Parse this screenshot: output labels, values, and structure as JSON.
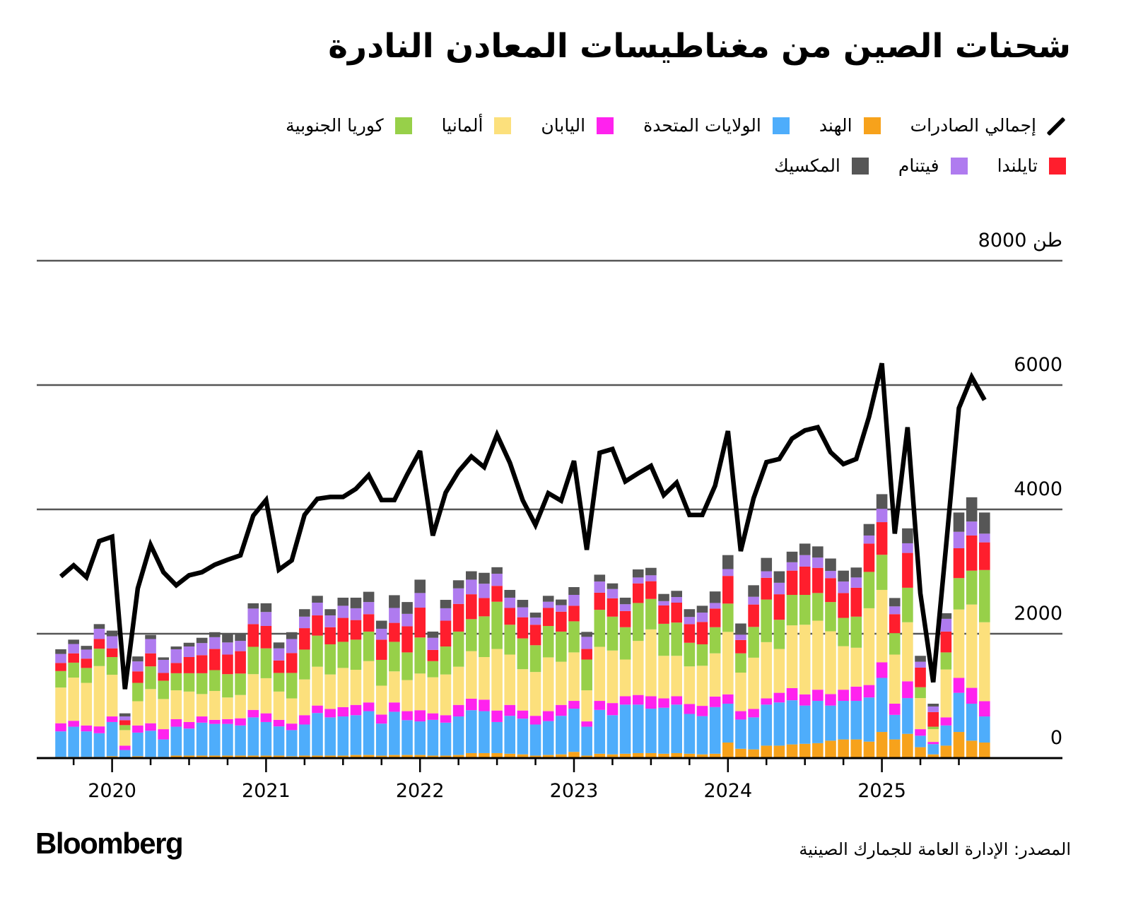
{
  "title": "شحنات الصين من مغناطيسات المعادن النادرة",
  "legend": {
    "total": "إجمالي الصادرات",
    "india": "الهند",
    "us": "الولايات المتحدة",
    "japan": "اليابان",
    "germany": "ألمانيا",
    "korea": "كوريا الجنوبية",
    "thailand": "تايلندا",
    "vietnam": "فيتنام",
    "mexico": "المكسيك"
  },
  "colors": {
    "india": "#F7A21B",
    "us": "#4EADFB",
    "japan": "#FF22EE",
    "germany": "#FCE07C",
    "korea": "#97D049",
    "thailand": "#FF1E2D",
    "vietnam": "#AF7BEF",
    "mexico": "#565656",
    "total": "#000000"
  },
  "brand": "Bloomberg",
  "source": "المصدر: الإدارة العامة للجمارك الصينية",
  "chart_data": {
    "type": "stacked bar + line",
    "ylim": [
      0,
      8000
    ],
    "y_unit": "طن",
    "y_ticks": [
      0,
      2000,
      4000,
      6000,
      8000
    ],
    "y_tick_labels": [
      "0",
      "2000",
      "4000",
      "6000",
      "8000 طن"
    ],
    "x_tick_labels": [
      "2020",
      "2021",
      "2022",
      "2023",
      "2024",
      "2025"
    ],
    "grid": "horizontal",
    "legend_placement": "top",
    "categories": [
      "2019-09",
      "2019-10",
      "2019-11",
      "2019-12",
      "2020-01",
      "2020-02",
      "2020-03",
      "2020-04",
      "2020-05",
      "2020-06",
      "2020-07",
      "2020-08",
      "2020-09",
      "2020-10",
      "2020-11",
      "2020-12",
      "2021-01",
      "2021-02",
      "2021-03",
      "2021-04",
      "2021-05",
      "2021-06",
      "2021-07",
      "2021-08",
      "2021-09",
      "2021-10",
      "2021-11",
      "2021-12",
      "2022-01",
      "2022-02",
      "2022-03",
      "2022-04",
      "2022-05",
      "2022-06",
      "2022-07",
      "2022-08",
      "2022-09",
      "2022-10",
      "2022-11",
      "2022-12",
      "2023-01",
      "2023-02",
      "2023-03",
      "2023-04",
      "2023-05",
      "2023-06",
      "2023-07",
      "2023-08",
      "2023-09",
      "2023-10",
      "2023-11",
      "2023-12",
      "2024-01",
      "2024-02",
      "2024-03",
      "2024-04",
      "2024-05",
      "2024-06",
      "2024-07",
      "2024-08",
      "2024-09",
      "2024-10",
      "2024-11",
      "2024-12",
      "2025-01",
      "2025-02",
      "2025-03",
      "2025-04",
      "2025-05",
      "2025-06",
      "2025-07",
      "2025-08",
      "2025-09"
    ],
    "line": {
      "name": "إجمالي الصادرات",
      "values": [
        2920,
        3100,
        2910,
        3490,
        3560,
        1110,
        2730,
        3430,
        2990,
        2780,
        2940,
        2990,
        3110,
        3190,
        3260,
        3900,
        4150,
        3030,
        3180,
        3910,
        4170,
        4200,
        4200,
        4330,
        4550,
        4150,
        4150,
        4560,
        4940,
        3580,
        4270,
        4610,
        4850,
        4680,
        5200,
        4750,
        4150,
        3750,
        4260,
        4140,
        4780,
        3350,
        4910,
        4970,
        4450,
        4580,
        4700,
        4230,
        4430,
        3910,
        3910,
        4380,
        5260,
        3330,
        4180,
        4760,
        4810,
        5140,
        5270,
        5320,
        4920,
        4730,
        4810,
        5490,
        6350,
        3610,
        5320,
        2650,
        1220,
        3400,
        5630,
        6130,
        5760
      ]
    },
    "series": [
      {
        "key": "india",
        "name": "الهند",
        "values": [
          20,
          20,
          20,
          20,
          30,
          10,
          30,
          20,
          20,
          40,
          40,
          40,
          40,
          40,
          40,
          40,
          40,
          40,
          30,
          40,
          40,
          40,
          40,
          50,
          50,
          40,
          50,
          50,
          50,
          40,
          40,
          50,
          80,
          80,
          80,
          70,
          60,
          40,
          50,
          60,
          100,
          40,
          70,
          60,
          70,
          80,
          80,
          70,
          80,
          70,
          60,
          70,
          250,
          150,
          140,
          200,
          200,
          220,
          230,
          240,
          280,
          300,
          300,
          265,
          420,
          300,
          390,
          175,
          60,
          200,
          420,
          280,
          250
        ]
      },
      {
        "key": "us",
        "name": "الولايات المتحدة",
        "values": [
          410,
          485,
          410,
          380,
          550,
          120,
          380,
          420,
          280,
          465,
          435,
          530,
          510,
          510,
          485,
          615,
          540,
          470,
          420,
          500,
          685,
          615,
          630,
          640,
          705,
          515,
          695,
          560,
          540,
          575,
          530,
          620,
          690,
          675,
          500,
          610,
          575,
          500,
          545,
          620,
          695,
          465,
          705,
          630,
          790,
          780,
          715,
          740,
          780,
          640,
          615,
          750,
          625,
          470,
          515,
          660,
          695,
          710,
          615,
          680,
          565,
          620,
          620,
          710,
          870,
          395,
          575,
          185,
          165,
          325,
          630,
          595,
          420
        ]
      },
      {
        "key": "japan",
        "name": "اليابان",
        "values": [
          130,
          95,
          95,
          110,
          90,
          70,
          115,
          120,
          165,
          120,
          105,
          100,
          65,
          75,
          115,
          120,
          140,
          105,
          105,
          150,
          120,
          135,
          150,
          165,
          140,
          145,
          150,
          145,
          180,
          105,
          120,
          185,
          185,
          185,
          185,
          175,
          130,
          140,
          160,
          175,
          125,
          85,
          145,
          195,
          135,
          155,
          200,
          150,
          135,
          160,
          165,
          170,
          150,
          135,
          135,
          100,
          155,
          195,
          180,
          180,
          185,
          180,
          230,
          200,
          250,
          180,
          270,
          105,
          35,
          130,
          240,
          255,
          245
        ]
      },
      {
        "key": "germany",
        "name": "ألمانيا",
        "values": [
          575,
          695,
          685,
          970,
          670,
          250,
          390,
          550,
          485,
          465,
          490,
          360,
          465,
          350,
          375,
          575,
          565,
          455,
          405,
          575,
          625,
          555,
          630,
          565,
          665,
          465,
          500,
          500,
          590,
          580,
          655,
          615,
          765,
          685,
          990,
          810,
          665,
          705,
          865,
          695,
          780,
          500,
          870,
          845,
          590,
          870,
          1075,
          685,
          650,
          605,
          645,
          695,
          1005,
          620,
          825,
          905,
          705,
          1010,
          1120,
          1110,
          1010,
          700,
          625,
          1235,
          1165,
          790,
          950,
          500,
          205,
          770,
          1100,
          1340,
          1270
        ]
      },
      {
        "key": "korea",
        "name": "كوريا الجنوبية",
        "values": [
          265,
          240,
          240,
          280,
          285,
          80,
          295,
          365,
          295,
          275,
          295,
          335,
          335,
          375,
          345,
          440,
          480,
          300,
          410,
          480,
          500,
          485,
          420,
          485,
          475,
          415,
          475,
          445,
          580,
          260,
          450,
          565,
          515,
          655,
          760,
          480,
          495,
          430,
          505,
          485,
          500,
          495,
          595,
          545,
          520,
          610,
          490,
          515,
          535,
          380,
          345,
          420,
          455,
          310,
          495,
          685,
          470,
          490,
          480,
          445,
          470,
          455,
          500,
          585,
          565,
          345,
          555,
          175,
          40,
          275,
          505,
          545,
          840
        ]
      },
      {
        "key": "thailand",
        "name": "تايلندا",
        "values": [
          130,
          150,
          150,
          155,
          140,
          80,
          185,
          210,
          125,
          165,
          260,
          290,
          340,
          315,
          360,
          365,
          360,
          200,
          320,
          345,
          325,
          275,
          385,
          315,
          280,
          325,
          305,
          420,
          480,
          180,
          415,
          445,
          400,
          295,
          255,
          270,
          340,
          330,
          290,
          320,
          250,
          170,
          275,
          295,
          260,
          315,
          285,
          295,
          320,
          300,
          360,
          300,
          445,
          215,
          360,
          350,
          410,
          390,
          455,
          405,
          385,
          400,
          465,
          455,
          525,
          305,
          560,
          315,
          235,
          335,
          480,
          565,
          445
        ]
      },
      {
        "key": "vietnam",
        "name": "فيتنام",
        "values": [
          145,
          150,
          145,
          165,
          195,
          60,
          160,
          230,
          210,
          220,
          170,
          195,
          190,
          195,
          165,
          250,
          225,
          195,
          225,
          185,
          205,
          190,
          195,
          190,
          195,
          175,
          240,
          200,
          235,
          195,
          200,
          250,
          235,
          230,
          195,
          165,
          160,
          115,
          100,
          105,
          175,
          195,
          180,
          150,
          110,
          95,
          95,
          70,
          90,
          115,
          150,
          90,
          110,
          85,
          125,
          105,
          185,
          135,
          185,
          165,
          115,
          185,
          165,
          130,
          215,
          125,
          155,
          95,
          90,
          205,
          265,
          225,
          140
        ]
      },
      {
        "key": "mexico",
        "name": "المكسيك",
        "values": [
          75,
          70,
          60,
          75,
          90,
          50,
          80,
          65,
          40,
          45,
          60,
          85,
          80,
          130,
          110,
          85,
          140,
          95,
          110,
          120,
          110,
          100,
          130,
          170,
          165,
          130,
          205,
          190,
          215,
          100,
          135,
          130,
          135,
          175,
          105,
          125,
          120,
          80,
          95,
          90,
          125,
          80,
          110,
          90,
          105,
          130,
          120,
          115,
          100,
          125,
          110,
          185,
          225,
          180,
          185,
          215,
          185,
          170,
          185,
          180,
          200,
          175,
          160,
          185,
          235,
          135,
          240,
          95,
          45,
          90,
          310,
          390,
          340
        ]
      }
    ]
  }
}
